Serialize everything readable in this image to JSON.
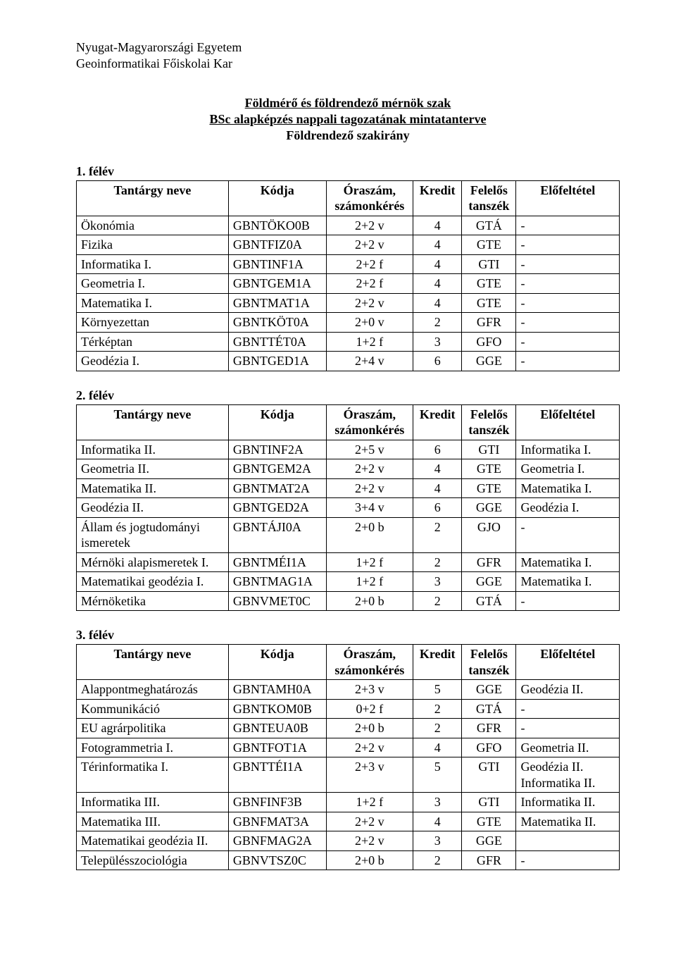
{
  "header": {
    "line1": "Nyugat-Magyarországi Egyetem",
    "line2": "Geoinformatikai Főiskolai Kar"
  },
  "titles": {
    "main1": "Földmérő és földrendező mérnök szak",
    "main2": "BSc alapképzés nappali tagozatának mintatanterve",
    "sub": "Földrendező szakirány"
  },
  "columns": [
    "Tantárgy neve",
    "Kódja",
    "Óraszám, számonkérés",
    "Kredit",
    "Felelős tanszék",
    "Előfeltétel"
  ],
  "semesters": [
    {
      "label": "1. félév",
      "rows": [
        [
          "Ökonómia",
          "GBNTÖKO0B",
          "2+2 v",
          "4",
          "GTÁ",
          "-"
        ],
        [
          "Fizika",
          "GBNTFIZ0A",
          "2+2 v",
          "4",
          "GTE",
          "-"
        ],
        [
          "Informatika I.",
          "GBNTINF1A",
          "2+2 f",
          "4",
          "GTI",
          "-"
        ],
        [
          "Geometria I.",
          "GBNTGEM1A",
          "2+2 f",
          "4",
          "GTE",
          "-"
        ],
        [
          "Matematika I.",
          "GBNTMAT1A",
          "2+2 v",
          "4",
          "GTE",
          "-"
        ],
        [
          "Környezettan",
          "GBNTKÖT0A",
          "2+0 v",
          "2",
          "GFR",
          "-"
        ],
        [
          "Térképtan",
          "GBNTTÉT0A",
          "1+2 f",
          "3",
          "GFO",
          "-"
        ],
        [
          "Geodézia I.",
          "GBNTGED1A",
          "2+4 v",
          "6",
          "GGE",
          "-"
        ]
      ]
    },
    {
      "label": "2. félév",
      "rows": [
        [
          "Informatika II.",
          "GBNTINF2A",
          "2+5 v",
          "6",
          "GTI",
          "Informatika I."
        ],
        [
          "Geometria II.",
          "GBNTGEM2A",
          "2+2 v",
          "4",
          "GTE",
          "Geometria I."
        ],
        [
          "Matematika II.",
          "GBNTMAT2A",
          "2+2 v",
          "4",
          "GTE",
          "Matematika I."
        ],
        [
          "Geodézia II.",
          "GBNTGED2A",
          "3+4 v",
          "6",
          "GGE",
          "Geodézia I."
        ],
        [
          "Állam és jogtudományi ismeretek",
          "GBNTÁJI0A",
          "2+0 b",
          "2",
          "GJO",
          "-"
        ],
        [
          "Mérnöki alapismeretek I.",
          "GBNTMÉI1A",
          "1+2 f",
          "2",
          "GFR",
          "Matematika I."
        ],
        [
          "Matematikai geodézia I.",
          "GBNTMAG1A",
          "1+2 f",
          "3",
          "GGE",
          "Matematika I."
        ],
        [
          "Mérnöketika",
          "GBNVMET0C",
          "2+0 b",
          "2",
          "GTÁ",
          "-"
        ]
      ]
    },
    {
      "label": "3. félév",
      "rows": [
        [
          "Alappontmeghatározás",
          "GBNTAMH0A",
          "2+3 v",
          "5",
          "GGE",
          "Geodézia II."
        ],
        [
          "Kommunikáció",
          "GBNTKOM0B",
          "0+2 f",
          "2",
          "GTÁ",
          "-"
        ],
        [
          "EU agrárpolitika",
          "GBNTEUA0B",
          "2+0 b",
          "2",
          "GFR",
          "-"
        ],
        [
          "Fotogrammetria I.",
          "GBNTFOT1A",
          "2+2 v",
          "4",
          "GFO",
          "Geometria II."
        ],
        [
          "Térinformatika I.",
          "GBNTTÉI1A",
          "2+3 v",
          "5",
          "GTI",
          "Geodézia II. Informatika II."
        ],
        [
          "Informatika III.",
          "GBNFINF3B",
          "1+2 f",
          "3",
          "GTI",
          "Informatika II."
        ],
        [
          "Matematika III.",
          "GBNFMAT3A",
          "2+2 v",
          "4",
          "GTE",
          "Matematika II."
        ],
        [
          "Matematikai geodézia II.",
          "GBNFMAG2A",
          "2+2 v",
          "3",
          "GGE",
          ""
        ],
        [
          "Településszociológia",
          "GBNVTSZ0C",
          "2+0 b",
          "2",
          "GFR",
          "-"
        ]
      ]
    }
  ]
}
